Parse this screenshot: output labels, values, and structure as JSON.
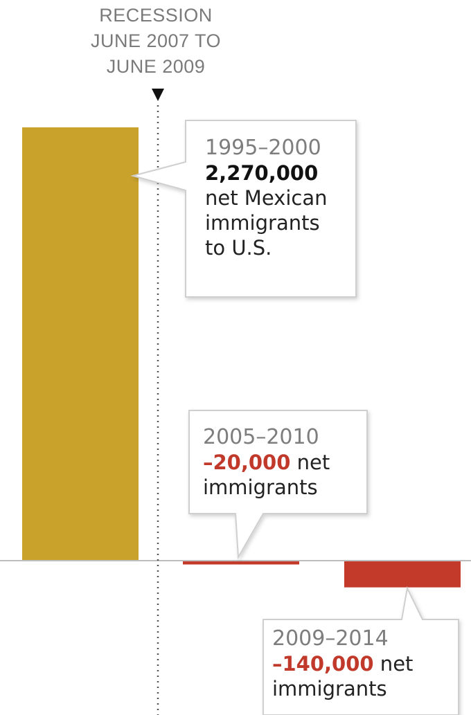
{
  "recession": {
    "lines": [
      "RECESSION",
      "JUNE 2007 TO",
      "JUNE 2009"
    ]
  },
  "colors": {
    "positive_bar": "#c9a22c",
    "negative_bar": "#c33a2b",
    "value_positive": "#111111",
    "value_negative": "#c0392b",
    "period_text": "#7d7d7d",
    "callout_border": "#cfcfcf"
  },
  "chart_data": {
    "type": "bar",
    "categories": [
      "1995–2000",
      "2005–2010",
      "2009–2014"
    ],
    "values": [
      2270000,
      -20000,
      -140000
    ],
    "title": "",
    "xlabel": "",
    "ylabel": "",
    "annotations": [
      {
        "period": "1995–2000",
        "value_label": "2,270,000",
        "text_lines": [
          "net Mexican",
          "immigrants",
          "to U.S."
        ]
      },
      {
        "period": "2005–2010",
        "value_label": "–20,000",
        "value_suffix": " net",
        "text_lines": [
          "immigrants"
        ]
      },
      {
        "period": "2009–2014",
        "value_label": "–140,000",
        "value_suffix": " net",
        "text_lines": [
          "immigrants"
        ]
      }
    ],
    "reference_line": {
      "label": "RECESSION JUNE 2007 TO JUNE 2009",
      "marker": "down-triangle"
    }
  }
}
